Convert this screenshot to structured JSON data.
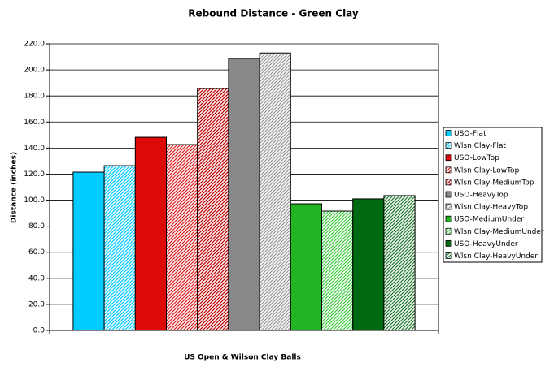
{
  "chart_data": {
    "type": "bar",
    "title": "Rebound Distance - Green Clay",
    "x_label": "US Open & Wilson Clay Balls",
    "y_label": "Distance (inches)",
    "categories": [
      null
    ],
    "ylim": [
      0,
      220
    ],
    "yticks": [
      {
        "value": 0,
        "label": "0.0"
      },
      {
        "value": 20,
        "label": "20.0"
      },
      {
        "value": 40,
        "label": "40.0"
      },
      {
        "value": 60,
        "label": "60.0"
      },
      {
        "value": 80,
        "label": "80.0"
      },
      {
        "value": 100,
        "label": "100.0"
      },
      {
        "value": 120,
        "label": "120.0"
      },
      {
        "value": 140,
        "label": "140.0"
      },
      {
        "value": 160,
        "label": "160.0"
      },
      {
        "value": 180,
        "label": "180.0"
      },
      {
        "value": 200,
        "label": "200.0"
      },
      {
        "value": 220,
        "label": "220.0"
      }
    ],
    "grid": true,
    "legend": "right",
    "series": [
      {
        "name": "USO-Flat",
        "color": "#00ccff",
        "hatch": false,
        "values": [
          121.5
        ]
      },
      {
        "name": "Wlsn Clay-Flat",
        "color": "#00ccff",
        "hatch": true,
        "values": [
          126.5
        ]
      },
      {
        "name": "USO-LowTop",
        "color": "#dd0808",
        "hatch": false,
        "values": [
          148.3
        ]
      },
      {
        "name": "Wlsn Clay-LowTop",
        "color": "#dd2020",
        "hatch": true,
        "values": [
          142.7
        ]
      },
      {
        "name": "Wlsn Clay-MediumTop",
        "color": "#c00000",
        "hatch": true,
        "values": [
          185.7
        ]
      },
      {
        "name": "USO-HeavyTop",
        "color": "#888888",
        "hatch": false,
        "values": [
          208.8
        ]
      },
      {
        "name": "Wlsn Clay-HeavyTop",
        "color": "#999999",
        "hatch": true,
        "values": [
          213
        ]
      },
      {
        "name": "USO-MediumUnder",
        "color": "#22b422",
        "hatch": false,
        "values": [
          97.2
        ]
      },
      {
        "name": "Wlsn Clay-MediumUnder",
        "color": "#44cc44",
        "hatch": true,
        "values": [
          91.6
        ]
      },
      {
        "name": "USO-HeavyUnder",
        "color": "#006a10",
        "hatch": false,
        "values": [
          101
        ]
      },
      {
        "name": "Wlsn Clay-HeavyUnder",
        "color": "#227a30",
        "hatch": true,
        "values": [
          103.5
        ]
      }
    ]
  }
}
